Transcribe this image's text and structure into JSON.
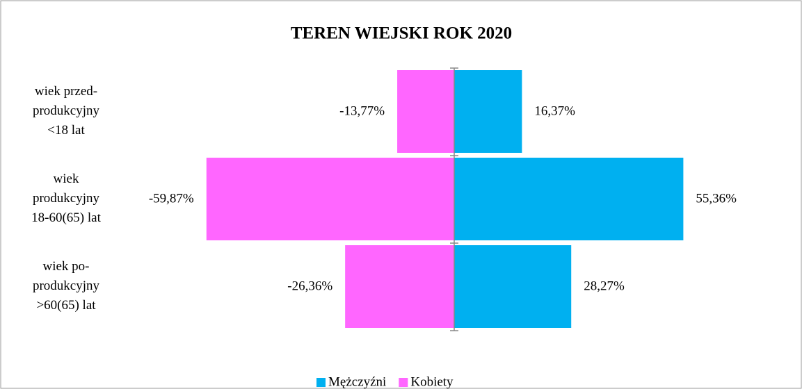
{
  "chart_data": {
    "type": "bar",
    "orientation": "horizontal",
    "title": "TEREN WIEJSKI ROK 2020",
    "categories": [
      [
        "wiek przed-",
        "produkcyjny",
        "<18 lat"
      ],
      [
        "wiek",
        "produkcyjny",
        "18-60(65) lat"
      ],
      [
        "wiek po-",
        "produkcyjny",
        ">60(65) lat"
      ]
    ],
    "series": [
      {
        "name": "Mężczyźni",
        "color": "#00b0f0",
        "values": [
          16.37,
          55.36,
          28.27
        ],
        "value_labels": [
          "16,37%",
          "55,36%",
          "28,27%"
        ]
      },
      {
        "name": "Kobiety",
        "color": "#ff66ff",
        "values": [
          -13.77,
          -59.87,
          -26.36
        ],
        "value_labels": [
          "-13,77%",
          "-59,87%",
          "-26,36%"
        ]
      }
    ],
    "xlim": [
      -80,
      80
    ],
    "legend": "bottom"
  }
}
